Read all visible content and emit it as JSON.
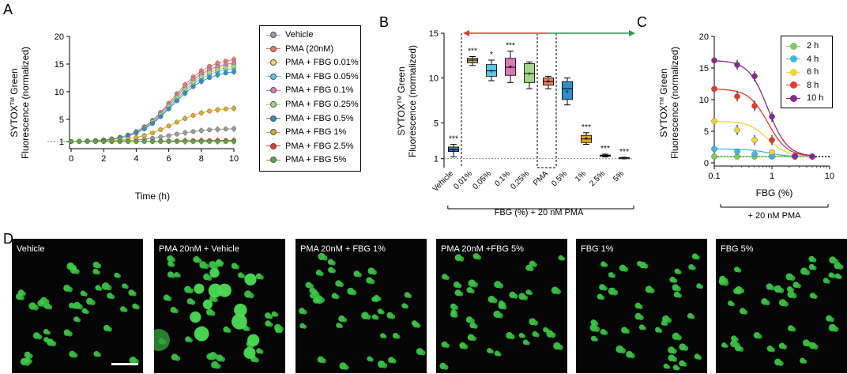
{
  "panels": {
    "a": "A",
    "b": "B",
    "c": "C",
    "d": "D"
  },
  "legend_a": [
    {
      "label": "Vehicle",
      "color": "#9a9a9a"
    },
    {
      "label": "PMA (20nM)",
      "color": "#f07860"
    },
    {
      "label": "PMA + FBG 0.01%",
      "color": "#f5d56a"
    },
    {
      "label": "PMA + FBG 0.05%",
      "color": "#5bc6e4"
    },
    {
      "label": "PMA + FBG 0.1%",
      "color": "#d979b6"
    },
    {
      "label": "PMA + FBG 0.25%",
      "color": "#a6d48a"
    },
    {
      "label": "PMA + FBG 0.5%",
      "color": "#2f8fc9"
    },
    {
      "label": "PMA + FBG 1%",
      "color": "#e0a82a"
    },
    {
      "label": "PMA + FBG 2.5%",
      "color": "#d83a2e"
    },
    {
      "label": "PMA + FBG 5%",
      "color": "#5aa83c"
    }
  ],
  "legend_c": [
    {
      "label": "2 h",
      "color": "#7fcb5a"
    },
    {
      "label": "4 h",
      "color": "#3db8e6"
    },
    {
      "label": "6 h",
      "color": "#f2d33b"
    },
    {
      "label": "8 h",
      "color": "#e8392a"
    },
    {
      "label": "10 h",
      "color": "#8a2a8e"
    }
  ],
  "chart_data": [
    {
      "type": "line",
      "title": "",
      "xlabel": "Time (h)",
      "ylabel_main": "SYTOX",
      "ylabel_tm": "TM",
      "ylabel_rest": " Green",
      "ylabel2": "Fluorescence (normalized)",
      "xlim": [
        0,
        10
      ],
      "ylim": [
        0,
        20
      ],
      "x_ticks": [
        "0",
        "2",
        "4",
        "6",
        "8",
        "10"
      ],
      "y_ticks": [
        "1",
        "5",
        "10",
        "15",
        "20"
      ],
      "x": [
        0,
        0.5,
        1,
        1.5,
        2,
        2.5,
        3,
        3.5,
        4,
        4.5,
        5,
        5.5,
        6,
        6.5,
        7,
        7.5,
        8,
        8.5,
        9,
        9.5,
        10
      ],
      "series": [
        {
          "name": "Vehicle",
          "color": "#9a9a9a",
          "final": 3.3
        },
        {
          "name": "PMA (20nM)",
          "color": "#f07860",
          "final": 15.8
        },
        {
          "name": "PMA + FBG 0.01%",
          "color": "#f5d56a",
          "final": 15.0
        },
        {
          "name": "PMA + FBG 0.05%",
          "color": "#5bc6e4",
          "final": 14.2
        },
        {
          "name": "PMA + FBG 0.1%",
          "color": "#d979b6",
          "final": 15.2
        },
        {
          "name": "PMA + FBG 0.25%",
          "color": "#a6d48a",
          "final": 14.6
        },
        {
          "name": "PMA + FBG 0.5%",
          "color": "#2f8fc9",
          "final": 13.6
        },
        {
          "name": "PMA + FBG 1%",
          "color": "#e0a82a",
          "final": 7.0
        },
        {
          "name": "PMA + FBG 2.5%",
          "color": "#d83a2e",
          "final": 1.2
        },
        {
          "name": "PMA + FBG 5%",
          "color": "#5aa83c",
          "final": 1.0
        }
      ]
    },
    {
      "type": "box",
      "ylabel_main": "SYTOX",
      "ylabel_tm": "TM",
      "ylabel_rest": " Green",
      "ylabel2": "Fluorescence (normalized)",
      "ylim": [
        0,
        15
      ],
      "y_ticks": [
        "1",
        "5",
        "10",
        "15"
      ],
      "xlabel": "FBG (%) + 20 nM PMA",
      "categories": [
        "Vehicle",
        "0.01%",
        "0.05%",
        "0.1%",
        "0.25%",
        "PMA",
        "0.5%",
        "1%",
        "2.5%",
        "5%"
      ],
      "boxes": [
        {
          "color": "#3a78b8",
          "min": 1.2,
          "q1": 1.8,
          "med": 2.0,
          "q3": 2.3,
          "max": 2.6,
          "mean": 2.0,
          "sig": "***"
        },
        {
          "color": "#b5aa6a",
          "min": 11.4,
          "q1": 11.7,
          "med": 12.0,
          "q3": 12.2,
          "max": 12.4,
          "mean": 12.0,
          "sig": "***"
        },
        {
          "color": "#5bc6e4",
          "min": 9.7,
          "q1": 10.2,
          "med": 10.8,
          "q3": 11.5,
          "max": 12.0,
          "mean": 10.8,
          "sig": "*"
        },
        {
          "color": "#d979b6",
          "min": 9.5,
          "q1": 10.3,
          "med": 11.2,
          "q3": 12.2,
          "max": 13.0,
          "mean": 11.3,
          "sig": "***"
        },
        {
          "color": "#a6d48a",
          "min": 8.8,
          "q1": 9.5,
          "med": 10.5,
          "q3": 11.6,
          "max": 11.8,
          "mean": 10.5,
          "sig": ""
        },
        {
          "color": "#f07860",
          "min": 8.8,
          "q1": 9.2,
          "med": 9.6,
          "q3": 10.0,
          "max": 10.2,
          "mean": 9.7,
          "sig": ""
        },
        {
          "color": "#2f8fc9",
          "min": 7.0,
          "q1": 7.6,
          "med": 8.8,
          "q3": 9.6,
          "max": 10.0,
          "mean": 8.5,
          "sig": ""
        },
        {
          "color": "#e0a82a",
          "min": 2.6,
          "q1": 2.8,
          "med": 3.2,
          "q3": 3.6,
          "max": 3.9,
          "mean": 3.3,
          "sig": "***"
        },
        {
          "color": "#9a9a9a",
          "min": 1.2,
          "q1": 1.3,
          "med": 1.35,
          "q3": 1.4,
          "max": 1.5,
          "mean": 1.35,
          "sig": "***"
        },
        {
          "color": "#9a9a9a",
          "min": 1.0,
          "q1": 1.05,
          "med": 1.1,
          "q3": 1.12,
          "max": 1.15,
          "mean": 1.1,
          "sig": "***"
        }
      ]
    },
    {
      "type": "line",
      "xscale": "log",
      "xlabel": "FBG (%)",
      "subtitle": "+ 20 nM PMA",
      "ylabel_main": "SYTOX",
      "ylabel_tm": "TM",
      "ylabel_rest": " Green",
      "ylabel2": "Fluorescence (normalized)",
      "xlim": [
        0.1,
        10
      ],
      "ylim": [
        0,
        20
      ],
      "x_ticks": [
        "0.1",
        "1",
        "10"
      ],
      "y_ticks": [
        "0",
        "5",
        "10",
        "15",
        "20"
      ],
      "x": [
        0.1,
        0.25,
        0.5,
        1,
        2.5,
        5
      ],
      "series": [
        {
          "name": "2 h",
          "color": "#7fcb5a",
          "values": [
            1.0,
            1.0,
            1.0,
            1.0,
            1.0,
            1.0
          ]
        },
        {
          "name": "4 h",
          "color": "#3db8e6",
          "values": [
            2.2,
            1.8,
            1.4,
            1.1,
            1.0,
            1.0
          ]
        },
        {
          "name": "6 h",
          "color": "#f2d33b",
          "values": [
            6.6,
            5.2,
            3.6,
            1.7,
            1.0,
            1.0
          ]
        },
        {
          "name": "8 h",
          "color": "#e8392a",
          "values": [
            11.7,
            10.5,
            9.0,
            3.6,
            1.0,
            1.0
          ]
        },
        {
          "name": "10 h",
          "color": "#8a2a8e",
          "values": [
            16.2,
            15.5,
            13.7,
            7.3,
            1.1,
            1.0
          ]
        }
      ]
    }
  ],
  "micrographs": [
    {
      "label": "Vehicle",
      "density": 0,
      "large": 0
    },
    {
      "label": "PMA 20nM + Vehicle",
      "density": 1,
      "large": 1
    },
    {
      "label": "PMA 20nM + FBG 1%",
      "density": 1,
      "large": 0
    },
    {
      "label": "PMA 20nM +FBG 5%",
      "density": 1,
      "large": 0
    },
    {
      "label": "FBG 1%",
      "density": 1,
      "large": 0
    },
    {
      "label": "FBG 5%",
      "density": 1,
      "large": 0
    }
  ]
}
